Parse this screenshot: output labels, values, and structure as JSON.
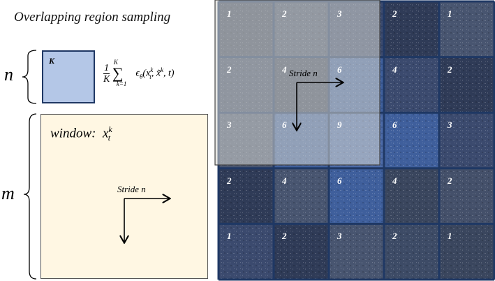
{
  "title": "Overlapping region sampling",
  "labels": {
    "n": "n",
    "m": "m"
  },
  "k_box": {
    "label": "K"
  },
  "formula": {
    "text": "1/K Σ_{k=1}^{K} ϵθ(x_t^k, x̃^k, t)"
  },
  "window_label": "window:  x_t^k",
  "stride_label": "Stride n",
  "grid": {
    "counts": [
      [
        1,
        2,
        3,
        2,
        1
      ],
      [
        2,
        4,
        6,
        4,
        2
      ],
      [
        3,
        6,
        9,
        6,
        3
      ],
      [
        2,
        4,
        6,
        4,
        2
      ],
      [
        1,
        2,
        3,
        2,
        1
      ]
    ]
  },
  "colors": {
    "k_fill": "#b4c7e7",
    "window_fill": "#fff7e3",
    "grid_line": "#1f3864"
  }
}
